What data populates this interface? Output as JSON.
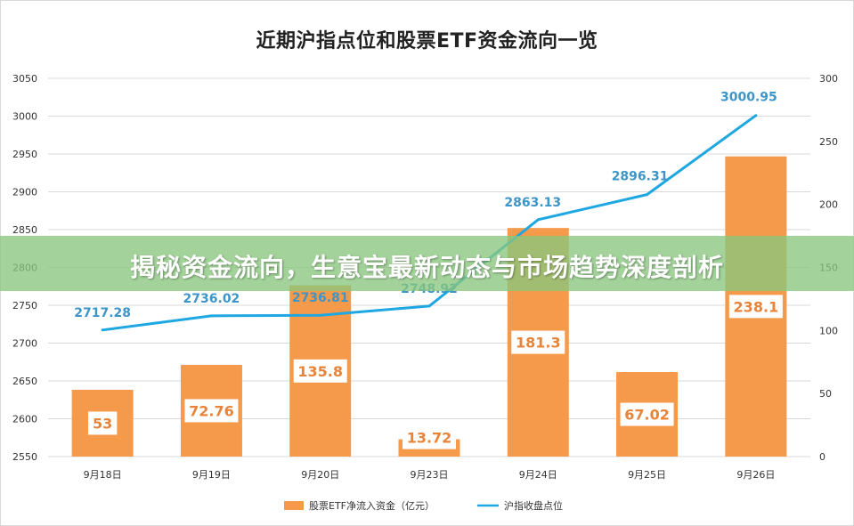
{
  "chart_data": {
    "title": "近期沪指点位和股票ETF资金流向一览",
    "type": "bar+line",
    "categories": [
      "9月18日",
      "9月19日",
      "9月20日",
      "9月23日",
      "9月24日",
      "9月25日",
      "9月26日"
    ],
    "series": [
      {
        "name": "股票ETF净流入资金（亿元）",
        "type": "bar",
        "axis": "right",
        "color": "#f5994a",
        "values": [
          53,
          72.76,
          135.8,
          13.72,
          181.3,
          67.02,
          238.1
        ],
        "labels": [
          "53",
          "72.76",
          "135.8",
          "13.72",
          "181.3",
          "67.02",
          "238.1"
        ]
      },
      {
        "name": "沪指收盘点位",
        "type": "line",
        "axis": "left",
        "color": "#1ea7e1",
        "values": [
          2717.28,
          2736.02,
          2736.81,
          2748.92,
          2863.13,
          2896.31,
          3000.95
        ],
        "labels": [
          "2717.28",
          "2736.02",
          "2736.81",
          "2748.92",
          "2863.13",
          "2896.31",
          "3000.95"
        ]
      }
    ],
    "y_left": {
      "min": 2550,
      "max": 3050,
      "ticks": [
        "2550",
        "2600",
        "2650",
        "2700",
        "2750",
        "2800",
        "2850",
        "2900",
        "2950",
        "3000",
        "3050"
      ]
    },
    "y_right": {
      "min": 0,
      "max": 300,
      "ticks": [
        "0",
        "50",
        "100",
        "150",
        "200",
        "250",
        "300"
      ]
    },
    "grid": true,
    "legend_position": "bottom"
  },
  "overlay": {
    "banner_text": "揭秘资金流向，生意宝最新动态与市场趋势深度剖析",
    "banner_color": "#89c67e"
  }
}
